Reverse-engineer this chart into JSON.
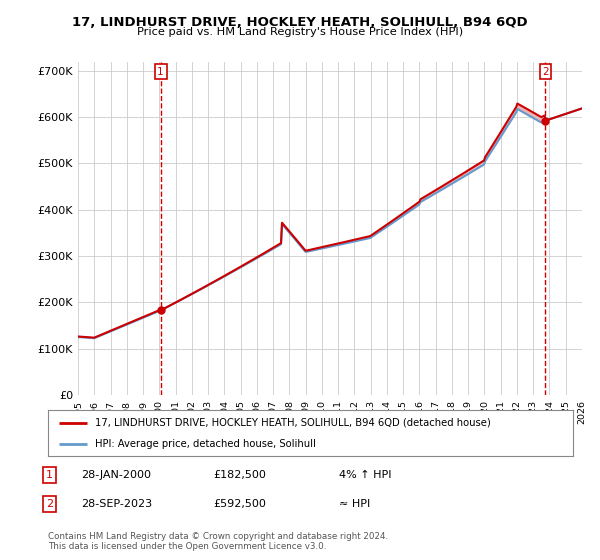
{
  "title": "17, LINDHURST DRIVE, HOCKLEY HEATH, SOLIHULL, B94 6QD",
  "subtitle": "Price paid vs. HM Land Registry's House Price Index (HPI)",
  "ylabel_ticks": [
    "£0",
    "£100K",
    "£200K",
    "£300K",
    "£400K",
    "£500K",
    "£600K",
    "£700K"
  ],
  "ytick_values": [
    0,
    100000,
    200000,
    300000,
    400000,
    500000,
    600000,
    700000
  ],
  "ylim": [
    0,
    720000
  ],
  "xlim_year": [
    1995,
    2026
  ],
  "legend_line1": "17, LINDHURST DRIVE, HOCKLEY HEATH, SOLIHULL, B94 6QD (detached house)",
  "legend_line2": "HPI: Average price, detached house, Solihull",
  "annotation1_date": "28-JAN-2000",
  "annotation1_price": "£182,500",
  "annotation1_change": "4% ↑ HPI",
  "annotation2_date": "28-SEP-2023",
  "annotation2_price": "£592,500",
  "annotation2_change": "≈ HPI",
  "footer": "Contains HM Land Registry data © Crown copyright and database right 2024.\nThis data is licensed under the Open Government Licence v3.0.",
  "red_color": "#cc0000",
  "blue_color": "#6699cc",
  "background_color": "#ffffff",
  "grid_color": "#cccccc",
  "sale1_year": 2000.08,
  "sale1_value": 182500,
  "sale2_year": 2023.75,
  "sale2_value": 592500
}
